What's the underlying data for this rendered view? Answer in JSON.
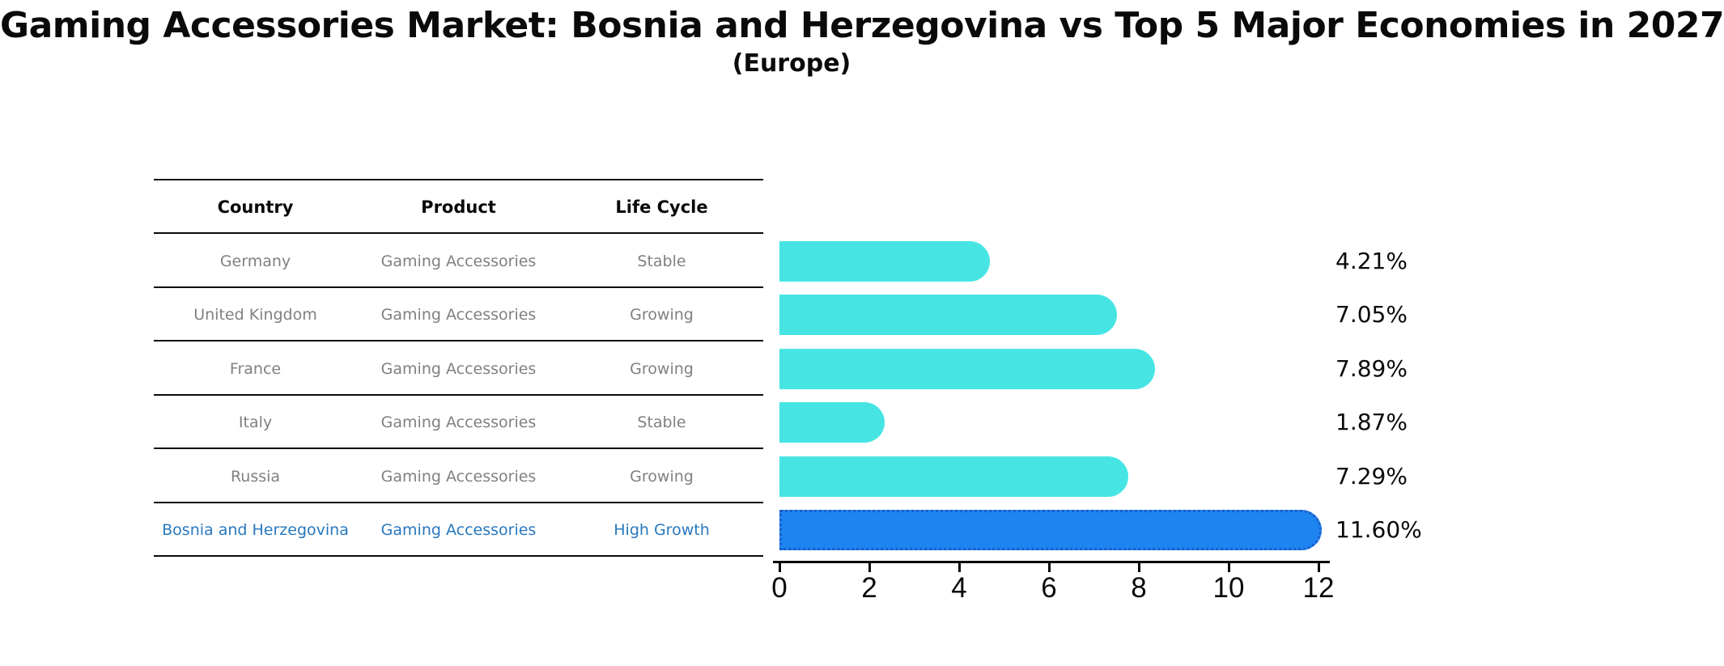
{
  "title": "Gaming Accessories Market: Bosnia and Herzegovina vs Top 5 Major Economies in 2027",
  "subtitle": "(Europe)",
  "table": {
    "headers": [
      "Country",
      "Product",
      "Life Cycle"
    ],
    "rows": [
      {
        "country": "Germany",
        "product": "Gaming Accessories",
        "life_cycle": "Stable"
      },
      {
        "country": "United Kingdom",
        "product": "Gaming Accessories",
        "life_cycle": "Growing"
      },
      {
        "country": "France",
        "product": "Gaming Accessories",
        "life_cycle": "Growing"
      },
      {
        "country": "Italy",
        "product": "Gaming Accessories",
        "life_cycle": "Stable"
      },
      {
        "country": "Russia",
        "product": "Gaming Accessories",
        "life_cycle": "Growing"
      },
      {
        "country": "Bosnia and Herzegovina",
        "product": "Gaming Accessories",
        "life_cycle": "High Growth"
      }
    ]
  },
  "chart_data": {
    "type": "bar",
    "orientation": "horizontal",
    "categories": [
      "Germany",
      "United Kingdom",
      "France",
      "Italy",
      "Russia",
      "Bosnia and Herzegovina"
    ],
    "values": [
      4.21,
      7.05,
      7.89,
      1.87,
      7.29,
      11.6
    ],
    "value_labels": [
      "4.21%",
      "7.05%",
      "7.89%",
      "1.87%",
      "7.29%",
      "11.60%"
    ],
    "xlim": [
      0,
      12
    ],
    "xticks": [
      "0",
      "2",
      "4",
      "6",
      "8",
      "10",
      "12"
    ],
    "grid": false,
    "legend": false,
    "highlight_index": 5,
    "bar_color": "#46e5e4",
    "highlight_color": "#1e84f0",
    "highlight_border_color": "#1a5ecc"
  },
  "colors": {
    "background": "#ffffff",
    "table_text": "#808080",
    "header_text": "#0a0a0a",
    "highlight_text": "#2878be"
  }
}
